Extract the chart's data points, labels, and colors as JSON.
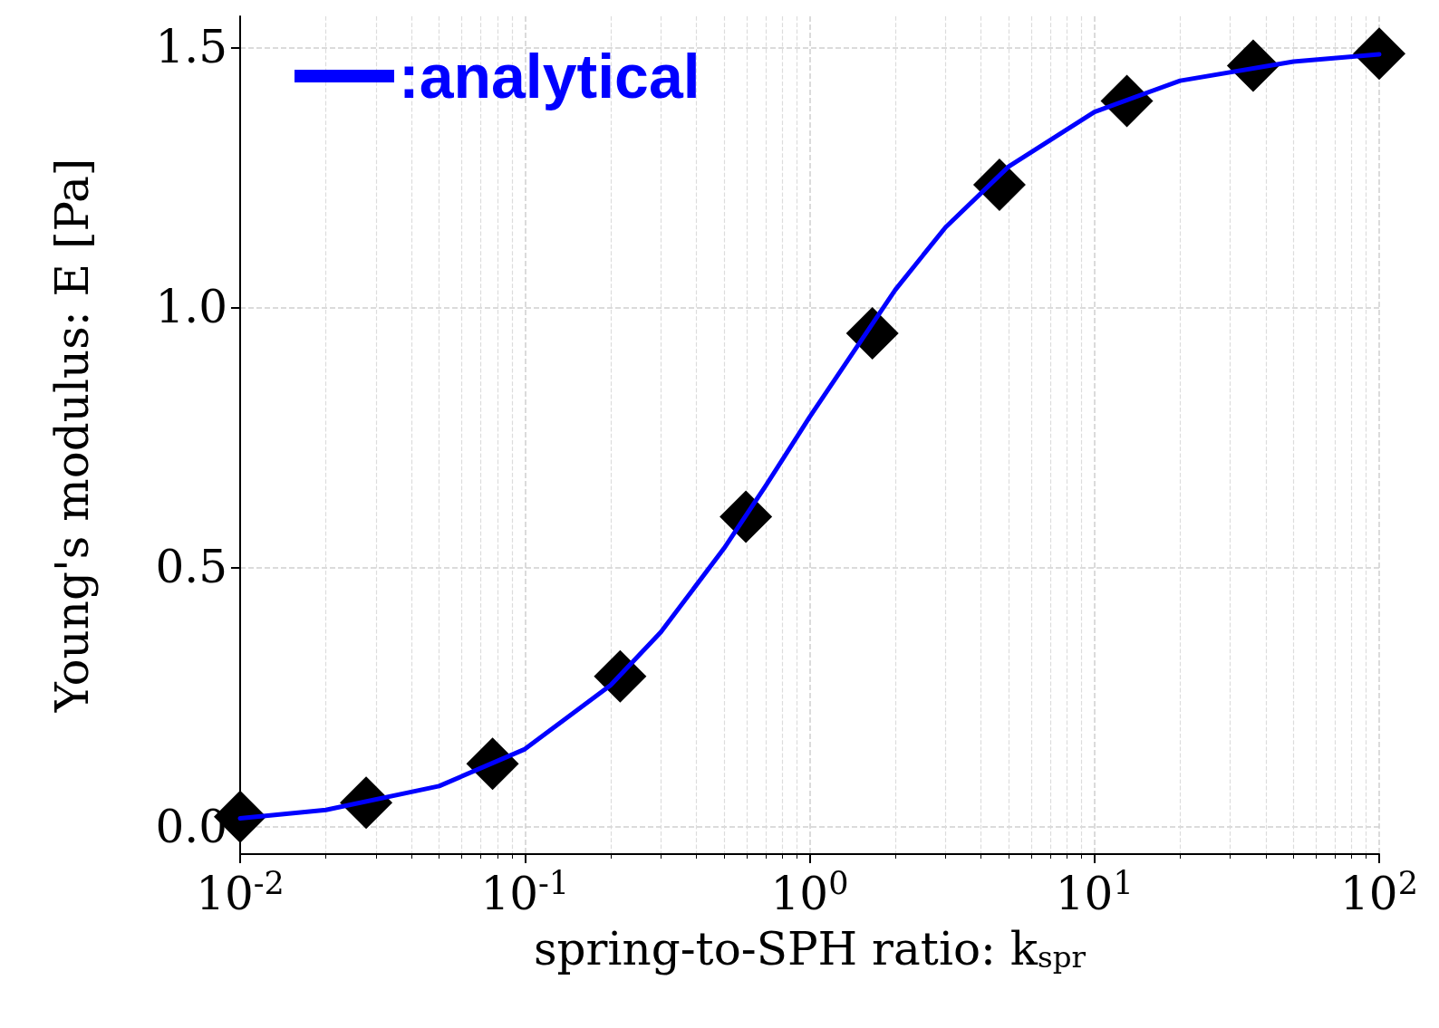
{
  "chart_data": {
    "type": "scatter",
    "xlabel": "spring-to-SPH ratio: k$_{spr}$",
    "ylabel": "Young's modulus: E [Pa]",
    "log": "x",
    "xlim": [
      0.01,
      100
    ],
    "ylim": [
      -0.052,
      1.56
    ],
    "xticks": [
      {
        "value": 0.01,
        "label": "10$^{-2}$"
      },
      {
        "value": 0.1,
        "label": "10$^{-1}$"
      },
      {
        "value": 1,
        "label": "10$^{0}$"
      },
      {
        "value": 10,
        "label": "10$^{1}$"
      },
      {
        "value": 100,
        "label": "10$^{2}$"
      }
    ],
    "yticks": [
      {
        "value": 0,
        "label": "0.0"
      },
      {
        "value": 0.5,
        "label": "0.5"
      },
      {
        "value": 1,
        "label": "1.0"
      },
      {
        "value": 1.5,
        "label": "1.5"
      }
    ],
    "grid": true,
    "legend": "top left",
    "series": [
      {
        "type": "line",
        "name": ":analytical",
        "color": "#0000ff",
        "marker": "none",
        "x": [
          0.01,
          0.02,
          0.05,
          0.1,
          0.2,
          0.3,
          0.5,
          0.7,
          1,
          2,
          3,
          5,
          10,
          20,
          50,
          100
        ],
        "values": [
          0.017,
          0.033,
          0.079,
          0.15,
          0.273,
          0.375,
          0.536,
          0.656,
          0.789,
          1.034,
          1.154,
          1.271,
          1.376,
          1.436,
          1.473,
          1.487
        ]
      },
      {
        "type": "scatter",
        "color": "#000000",
        "marker": "diamond",
        "x": [
          0.01,
          0.0277,
          0.077,
          0.216,
          0.597,
          1.66,
          4.64,
          13,
          36.1,
          100
        ],
        "values": [
          0.02,
          0.047,
          0.122,
          0.29,
          0.597,
          0.95,
          1.236,
          1.397,
          1.465,
          1.488
        ]
      }
    ]
  }
}
